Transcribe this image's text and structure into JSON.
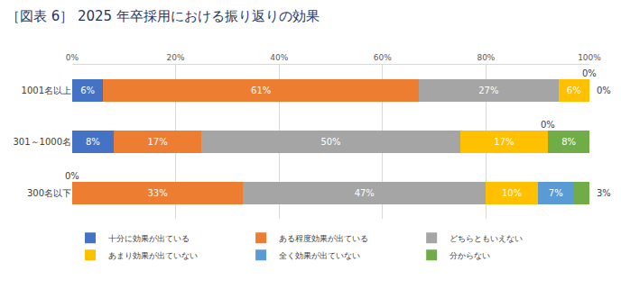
{
  "chart_data": {
    "type": "bar",
    "title": "［図表 6］ 2025 年卒採用における振り返りの効果",
    "orientation": "horizontal",
    "stacked": true,
    "data_labels": true,
    "grid": true,
    "legend": "bottom",
    "categories": [
      "1001名以上",
      "301～1000名",
      "300名以下"
    ],
    "xlim": [
      0,
      100
    ],
    "xticks": [
      {
        "value": 0,
        "label": "0%"
      },
      {
        "value": 20,
        "label": "20%"
      },
      {
        "value": 40,
        "label": "40%"
      },
      {
        "value": 60,
        "label": "60%"
      },
      {
        "value": 80,
        "label": "80%"
      },
      {
        "value": 100,
        "label": "100%"
      }
    ],
    "series": [
      {
        "name": "十分に効果が出ている",
        "color": "#4472c4",
        "values": [
          6,
          8,
          0
        ],
        "value_labels": [
          "6%",
          "8%",
          "0%"
        ]
      },
      {
        "name": "ある程度効果が出ている",
        "color": "#ed7d31",
        "values": [
          61,
          17,
          33
        ],
        "value_labels": [
          "61%",
          "17%",
          "33%"
        ]
      },
      {
        "name": "どちらともいえない",
        "color": "#a5a5a5",
        "values": [
          27,
          50,
          47
        ],
        "value_labels": [
          "27%",
          "50%",
          "47%"
        ]
      },
      {
        "name": "あまり効果が出ていない",
        "color": "#ffc000",
        "values": [
          6,
          17,
          10
        ],
        "value_labels": [
          "6%",
          "17%",
          "10%"
        ]
      },
      {
        "name": "全く効果が出ていない",
        "color": "#5b9bd5",
        "values": [
          0,
          0,
          7
        ],
        "value_labels": [
          "0%",
          "0%",
          "7%"
        ]
      },
      {
        "name": "分からない",
        "color": "#70ad47",
        "values": [
          0,
          8,
          3
        ],
        "value_labels": [
          "0%",
          "8%",
          "3%"
        ]
      }
    ]
  }
}
